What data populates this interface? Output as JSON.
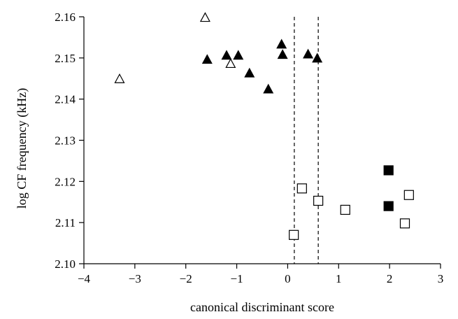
{
  "chart_data": {
    "type": "scatter",
    "title": "",
    "xlabel": "canonical discriminant score",
    "ylabel": "log CF frequency (kHz)",
    "xlim": [
      -4,
      3
    ],
    "ylim": [
      2.1,
      2.16
    ],
    "xticks": [
      -4,
      -3,
      -2,
      -1,
      0,
      1,
      2,
      3
    ],
    "yticks": [
      2.1,
      2.11,
      2.12,
      2.13,
      2.14,
      2.15,
      2.16
    ],
    "xtick_labels": [
      "−4",
      "−3",
      "−2",
      "−1",
      "0",
      "1",
      "2",
      "3"
    ],
    "ytick_labels": [
      "2.10",
      "2.11",
      "2.12",
      "2.13",
      "2.14",
      "2.15",
      "2.16"
    ],
    "grid": false,
    "vlines": [
      {
        "x": 0.13,
        "style": "dashed"
      },
      {
        "x": 0.6,
        "style": "dashed"
      }
    ],
    "series": [
      {
        "marker": "triangle-filled",
        "color": "#000000",
        "points": [
          {
            "x": -1.58,
            "y": 2.1495
          },
          {
            "x": -1.2,
            "y": 2.1505
          },
          {
            "x": -0.97,
            "y": 2.1505
          },
          {
            "x": -0.75,
            "y": 2.1462
          },
          {
            "x": -0.38,
            "y": 2.1423
          },
          {
            "x": -0.12,
            "y": 2.1532
          },
          {
            "x": -0.1,
            "y": 2.1507
          },
          {
            "x": 0.4,
            "y": 2.1508
          },
          {
            "x": 0.58,
            "y": 2.1498
          }
        ]
      },
      {
        "marker": "triangle-open",
        "color": "#000000",
        "points": [
          {
            "x": -3.3,
            "y": 2.1448
          },
          {
            "x": -1.62,
            "y": 2.1597
          },
          {
            "x": -1.12,
            "y": 2.1485
          }
        ]
      },
      {
        "marker": "square-filled",
        "color": "#000000",
        "points": [
          {
            "x": 1.98,
            "y": 2.1227
          },
          {
            "x": 1.98,
            "y": 2.114
          }
        ]
      },
      {
        "marker": "square-open",
        "color": "#000000",
        "points": [
          {
            "x": 0.12,
            "y": 2.107
          },
          {
            "x": 0.28,
            "y": 2.1183
          },
          {
            "x": 0.6,
            "y": 2.1153
          },
          {
            "x": 1.13,
            "y": 2.1131
          },
          {
            "x": 2.3,
            "y": 2.1098
          },
          {
            "x": 2.38,
            "y": 2.1167
          }
        ]
      }
    ]
  }
}
